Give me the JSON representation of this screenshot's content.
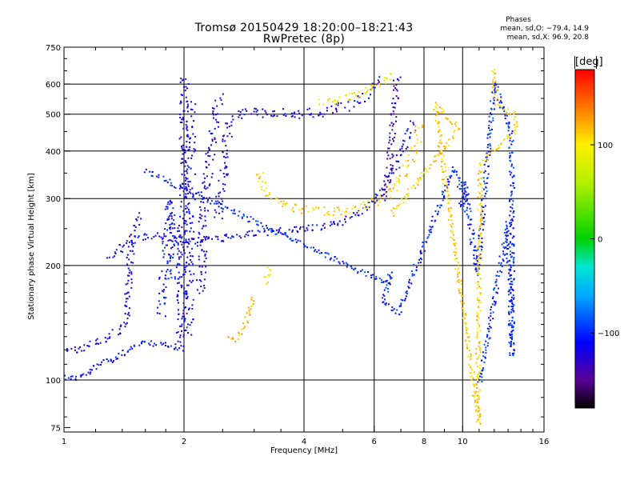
{
  "chart_data": {
    "type": "scatter",
    "title": "Tromsø 20150429 18:20:00–18:21:43",
    "subtitle": "RwPretec (8p)",
    "xlabel": "Frequency [MHz]",
    "ylabel": "Stationary phase Virtual Height [km]",
    "x_scale": "log",
    "y_scale": "log",
    "xlim": [
      1,
      16
    ],
    "ylim": [
      73,
      750
    ],
    "x_ticks": [
      1,
      2,
      4,
      6,
      8,
      10,
      16
    ],
    "x_tick_labels": [
      "1",
      "2",
      "4",
      "6",
      "8",
      "10",
      "16"
    ],
    "y_ticks": [
      75,
      100,
      200,
      300,
      400,
      500,
      600,
      750
    ],
    "y_tick_labels": [
      "75",
      "100",
      "200",
      "300",
      "400",
      "500",
      "600",
      "750"
    ],
    "grid": true,
    "colorbar": {
      "unit": "[deg]",
      "range": [
        -180,
        180
      ],
      "ticks": [
        100,
        0,
        -100
      ],
      "tick_labels": [
        "100",
        "0",
        "−100"
      ]
    },
    "stats": {
      "header": "Phases",
      "line1": "mean, sd,O: −79.4, 14.9",
      "line2": "mean, sd,X:  96.9, 20.8"
    },
    "traces": [
      {
        "name": "",
        "phase": -110,
        "spread": 0.012,
        "points": [
          [
            1.0,
            102
          ],
          [
            1.05,
            101
          ],
          [
            1.1,
            102
          ],
          [
            1.18,
            106
          ],
          [
            1.25,
            112
          ],
          [
            1.35,
            114
          ],
          [
            1.45,
            120
          ],
          [
            1.55,
            124
          ],
          [
            1.7,
            125
          ],
          [
            1.85,
            122
          ],
          [
            1.95,
            118
          ]
        ]
      },
      {
        "name": "",
        "phase": -120,
        "spread": 0.015,
        "points": [
          [
            1.0,
            122
          ],
          [
            1.1,
            120
          ],
          [
            1.2,
            125
          ],
          [
            1.3,
            130
          ],
          [
            1.4,
            138
          ],
          [
            1.45,
            150
          ],
          [
            1.45,
            175
          ],
          [
            1.46,
            200
          ],
          [
            1.48,
            230
          ],
          [
            1.52,
            255
          ],
          [
            1.55,
            275
          ]
        ]
      },
      {
        "name": "",
        "phase": -115,
        "spread": 0.015,
        "points": [
          [
            1.3,
            210
          ],
          [
            1.4,
            225
          ],
          [
            1.55,
            238
          ],
          [
            1.7,
            240
          ],
          [
            1.9,
            235
          ],
          [
            2.1,
            232
          ],
          [
            2.5,
            236
          ],
          [
            3.0,
            242
          ],
          [
            3.5,
            246
          ],
          [
            4.0,
            248
          ],
          [
            4.5,
            255
          ],
          [
            5.0,
            262
          ],
          [
            5.5,
            275
          ],
          [
            6.0,
            295
          ],
          [
            6.5,
            330
          ],
          [
            6.9,
            380
          ],
          [
            7.3,
            440
          ],
          [
            7.6,
            480
          ]
        ]
      },
      {
        "name": "",
        "phase": -120,
        "spread": 0.018,
        "points": [
          [
            1.95,
            120
          ],
          [
            1.97,
            160
          ],
          [
            1.98,
            200
          ],
          [
            1.99,
            260
          ],
          [
            2.0,
            320
          ],
          [
            2.0,
            400
          ],
          [
            2.0,
            480
          ],
          [
            2.0,
            560
          ],
          [
            2.01,
            640
          ]
        ]
      },
      {
        "name": "",
        "phase": -115,
        "spread": 0.022,
        "points": [
          [
            2.05,
            130
          ],
          [
            2.06,
            180
          ],
          [
            2.06,
            240
          ],
          [
            2.07,
            300
          ],
          [
            2.07,
            380
          ],
          [
            2.08,
            460
          ],
          [
            2.09,
            540
          ]
        ]
      },
      {
        "name": "",
        "phase": -110,
        "spread": 0.02,
        "points": [
          [
            1.75,
            150
          ],
          [
            1.8,
            200
          ],
          [
            1.82,
            260
          ],
          [
            1.85,
            300
          ],
          [
            1.88,
            250
          ],
          [
            1.9,
            180
          ]
        ]
      },
      {
        "name": "",
        "phase": -125,
        "spread": 0.02,
        "points": [
          [
            2.2,
            170
          ],
          [
            2.22,
            230
          ],
          [
            2.25,
            290
          ],
          [
            2.3,
            360
          ],
          [
            2.35,
            430
          ],
          [
            2.4,
            500
          ],
          [
            2.45,
            560
          ]
        ]
      },
      {
        "name": "",
        "phase": -118,
        "spread": 0.02,
        "points": [
          [
            2.45,
            270
          ],
          [
            2.5,
            330
          ],
          [
            2.55,
            400
          ],
          [
            2.6,
            470
          ],
          [
            2.8,
            510
          ],
          [
            3.2,
            505
          ],
          [
            3.8,
            500
          ],
          [
            4.4,
            505
          ],
          [
            5.0,
            520
          ],
          [
            5.5,
            545
          ],
          [
            5.9,
            580
          ],
          [
            6.1,
            620
          ]
        ]
      },
      {
        "name": "",
        "phase": 110,
        "spread": 0.018,
        "points": [
          [
            3.1,
            355
          ],
          [
            3.15,
            320
          ],
          [
            3.3,
            300
          ],
          [
            3.6,
            288
          ],
          [
            4.0,
            280
          ],
          [
            4.5,
            277
          ],
          [
            5.0,
            278
          ],
          [
            5.5,
            285
          ],
          [
            6.0,
            295
          ],
          [
            6.5,
            310
          ],
          [
            7.0,
            340
          ],
          [
            7.4,
            380
          ],
          [
            7.7,
            430
          ],
          [
            7.8,
            480
          ]
        ]
      },
      {
        "name": "",
        "phase": 95,
        "spread": 0.015,
        "points": [
          [
            4.4,
            535
          ],
          [
            4.8,
            545
          ],
          [
            5.2,
            555
          ],
          [
            5.6,
            570
          ],
          [
            6.0,
            590
          ],
          [
            6.4,
            620
          ],
          [
            6.7,
            640
          ]
        ]
      },
      {
        "name": "",
        "phase": -135,
        "spread": 0.015,
        "points": [
          [
            6.3,
            300
          ],
          [
            6.5,
            340
          ],
          [
            6.6,
            400
          ],
          [
            6.7,
            460
          ],
          [
            6.75,
            520
          ],
          [
            6.8,
            580
          ],
          [
            6.9,
            630
          ]
        ]
      },
      {
        "name": "",
        "phase": 120,
        "spread": 0.01,
        "points": [
          [
            2.6,
            130
          ],
          [
            2.7,
            128
          ],
          [
            2.8,
            135
          ],
          [
            2.9,
            150
          ],
          [
            3.0,
            165
          ]
        ]
      },
      {
        "name": "",
        "phase": 100,
        "spread": 0.01,
        "points": [
          [
            3.2,
            180
          ],
          [
            3.25,
            190
          ],
          [
            3.3,
            200
          ]
        ]
      },
      {
        "name": "",
        "phase": -100,
        "spread": 0.01,
        "points": [
          [
            1.6,
            355
          ],
          [
            6.4,
            180
          ],
          [
            6.6,
            190
          ],
          [
            6.3,
            160
          ],
          [
            6.9,
            150
          ],
          [
            9.5,
            360
          ],
          [
            9.8,
            335
          ],
          [
            10.0,
            280
          ],
          [
            10.1,
            330
          ],
          [
            10.9,
            190
          ],
          [
            12.0,
            600
          ],
          [
            13.2,
            450
          ],
          [
            13.3,
            380
          ],
          [
            13.3,
            290
          ],
          [
            13.3,
            245
          ],
          [
            13.3,
            200
          ],
          [
            13.3,
            115
          ],
          [
            13.0,
            260
          ],
          [
            11.0,
            97
          ]
        ]
      },
      {
        "name": "",
        "phase": 110,
        "spread": 0.01,
        "points": [
          [
            11.9,
            660
          ],
          [
            12.2,
            530
          ],
          [
            13.5,
            500
          ],
          [
            13.6,
            450
          ],
          [
            11.1,
            370
          ],
          [
            10.9,
            87
          ],
          [
            11.0,
            77
          ],
          [
            8.5,
            530
          ],
          [
            9.8,
            460
          ],
          [
            6.6,
            270
          ]
        ]
      }
    ]
  }
}
